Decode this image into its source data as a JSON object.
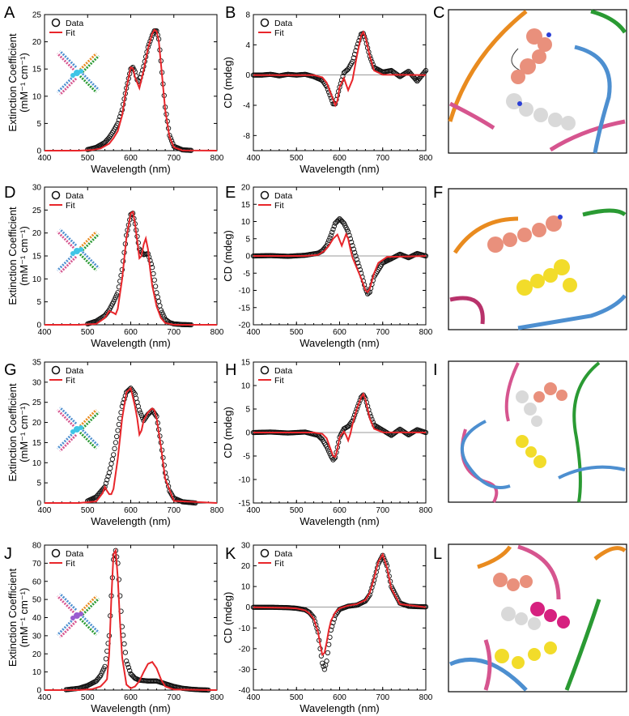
{
  "colors": {
    "fit": "#e8262b",
    "data": "#111111",
    "strand_orange": "#e98b1f",
    "strand_green": "#2a9a33",
    "strand_blue": "#4d8fd0",
    "strand_pink": "#d6558f",
    "dye_salmon": "#e9907c",
    "dye_white": "#d9d9d9",
    "dye_yellow": "#f2dc2a",
    "dye_magenta": "#d6207f",
    "nitrogen": "#2b3fd6"
  },
  "panels": [
    {
      "letter": "A"
    },
    {
      "letter": "B"
    },
    {
      "letter": "C"
    },
    {
      "letter": "D"
    },
    {
      "letter": "E"
    },
    {
      "letter": "F"
    },
    {
      "letter": "G"
    },
    {
      "letter": "H"
    },
    {
      "letter": "I"
    },
    {
      "letter": "J"
    },
    {
      "letter": "K"
    },
    {
      "letter": "L"
    }
  ],
  "legend": {
    "data_label": "Data",
    "fit_label": "Fit"
  },
  "chart_data": [
    {
      "id": "A",
      "type": "line",
      "xlabel": "Wavelength (nm)",
      "ylabel_line1": "Extinction Coefficient",
      "ylabel_line2": "(mM⁻¹ cm⁻¹)",
      "xlim": [
        400,
        800
      ],
      "ylim": [
        0,
        25
      ],
      "xticks": [
        400,
        500,
        600,
        700,
        800
      ],
      "yticks": [
        0,
        5,
        10,
        15,
        20,
        25
      ],
      "series": [
        {
          "name": "Data",
          "x": [
            500,
            520,
            540,
            550,
            560,
            570,
            580,
            590,
            600,
            605,
            610,
            615,
            620,
            630,
            640,
            650,
            655,
            660,
            665,
            670,
            680,
            690,
            700,
            720,
            740
          ],
          "y": [
            0.2,
            0.6,
            1.5,
            2.4,
            3.6,
            5.0,
            7.5,
            11.5,
            15.0,
            15.3,
            14.5,
            13.0,
            12.7,
            15.5,
            19.0,
            21.2,
            22.0,
            22.0,
            20.5,
            16.5,
            8.0,
            2.8,
            0.8,
            0.15,
            0.05
          ]
        },
        {
          "name": "Fit",
          "x": [
            400,
            480,
            510,
            530,
            550,
            560,
            570,
            580,
            590,
            600,
            605,
            610,
            620,
            630,
            640,
            650,
            655,
            660,
            665,
            670,
            680,
            690,
            700,
            720,
            800
          ],
          "y": [
            0,
            0,
            0.1,
            0.4,
            1.3,
            2.3,
            3.6,
            6.5,
            11.5,
            15.3,
            15.1,
            13.5,
            11.5,
            14.8,
            18.8,
            21.5,
            22.2,
            21.9,
            20.2,
            16.0,
            7.5,
            2.5,
            0.6,
            0.05,
            0
          ]
        }
      ]
    },
    {
      "id": "B",
      "type": "line",
      "xlabel": "Wavelength (nm)",
      "ylabel_line1": "CD (mdeg)",
      "xlim": [
        400,
        800
      ],
      "ylim": [
        -10,
        8
      ],
      "xticks": [
        400,
        500,
        600,
        700,
        800
      ],
      "yticks": [
        -8,
        -4,
        0,
        4,
        8
      ],
      "series": [
        {
          "name": "Data",
          "x": [
            400,
            420,
            440,
            460,
            480,
            500,
            520,
            540,
            560,
            570,
            580,
            585,
            590,
            600,
            610,
            620,
            630,
            640,
            650,
            655,
            660,
            670,
            680,
            700,
            720,
            740,
            760,
            780,
            800
          ],
          "y": [
            0,
            0,
            0.1,
            -0.1,
            0.1,
            0,
            0.1,
            -0.2,
            -0.7,
            -1.5,
            -3.0,
            -3.8,
            -3.8,
            -1.6,
            0.3,
            0.8,
            1.8,
            3.7,
            5.4,
            5.5,
            4.7,
            2.5,
            1.0,
            0.4,
            0.6,
            -0.2,
            0.5,
            -0.8,
            0.6
          ]
        },
        {
          "name": "Fit",
          "x": [
            400,
            500,
            540,
            560,
            570,
            580,
            590,
            595,
            600,
            610,
            620,
            630,
            640,
            650,
            655,
            660,
            670,
            680,
            700,
            800
          ],
          "y": [
            0,
            0,
            0,
            -0.3,
            -1.0,
            -2.5,
            -4.0,
            -3.4,
            -1.6,
            -0.4,
            -2.0,
            -0.6,
            2.5,
            5.2,
            5.7,
            5.0,
            2.5,
            0.6,
            0.05,
            0
          ]
        }
      ]
    },
    {
      "id": "D",
      "type": "line",
      "xlabel": "Wavelength (nm)",
      "ylabel_line1": "Extinction Coefficient",
      "ylabel_line2": "(mM⁻¹ cm⁻¹)",
      "xlim": [
        400,
        800
      ],
      "ylim": [
        0,
        30
      ],
      "xticks": [
        400,
        500,
        600,
        700,
        800
      ],
      "yticks": [
        0,
        5,
        10,
        15,
        20,
        25,
        30
      ],
      "series": [
        {
          "name": "Data",
          "x": [
            500,
            520,
            540,
            550,
            560,
            570,
            580,
            590,
            600,
            605,
            610,
            620,
            630,
            640,
            650,
            660,
            670,
            680,
            690,
            700,
            720,
            740
          ],
          "y": [
            0.2,
            0.8,
            2.0,
            3.2,
            5.0,
            7.0,
            12.0,
            19.5,
            24.0,
            24.3,
            22.0,
            16.5,
            15.3,
            15.5,
            12.5,
            7.0,
            3.2,
            1.2,
            0.5,
            0.2,
            0.05,
            0
          ]
        },
        {
          "name": "Fit",
          "x": [
            400,
            480,
            520,
            540,
            550,
            560,
            565,
            570,
            580,
            590,
            600,
            605,
            610,
            620,
            625,
            630,
            635,
            640,
            645,
            650,
            660,
            670,
            680,
            700,
            800
          ],
          "y": [
            0,
            0,
            0.2,
            1.5,
            3.0,
            2.6,
            2.3,
            3.5,
            10.0,
            19.0,
            24.3,
            24.6,
            22.0,
            14.5,
            15.0,
            17.5,
            18.8,
            16.5,
            12.0,
            8.5,
            4.0,
            1.5,
            0.4,
            0,
            0
          ]
        }
      ]
    },
    {
      "id": "E",
      "type": "line",
      "xlabel": "Wavelength (nm)",
      "ylabel_line1": "CD (mdeg)",
      "xlim": [
        400,
        800
      ],
      "ylim": [
        -20,
        20
      ],
      "xticks": [
        400,
        500,
        600,
        700,
        800
      ],
      "yticks": [
        -20,
        -15,
        -10,
        -5,
        0,
        5,
        10,
        15,
        20
      ],
      "series": [
        {
          "name": "Data",
          "x": [
            400,
            440,
            480,
            520,
            550,
            560,
            570,
            580,
            590,
            600,
            610,
            620,
            630,
            640,
            650,
            660,
            665,
            670,
            680,
            700,
            720,
            740,
            760,
            780,
            800
          ],
          "y": [
            0,
            0.1,
            -0.1,
            0.2,
            0.8,
            1.5,
            3.0,
            6.0,
            9.5,
            10.8,
            9.5,
            7.0,
            3.0,
            -1.0,
            -5.0,
            -9.5,
            -11.0,
            -10.5,
            -6.0,
            -2.0,
            -0.8,
            0.5,
            -0.5,
            0.7,
            0
          ]
        },
        {
          "name": "Fit",
          "x": [
            400,
            520,
            550,
            565,
            575,
            585,
            595,
            605,
            615,
            620,
            625,
            630,
            640,
            650,
            660,
            665,
            670,
            680,
            690,
            710,
            800
          ],
          "y": [
            0,
            0,
            0.3,
            1.5,
            3.0,
            5.0,
            6.2,
            3.0,
            6.3,
            5.0,
            2.0,
            -0.5,
            -3.5,
            -6.5,
            -10.0,
            -10.5,
            -9.5,
            -5.0,
            -2.0,
            -0.3,
            0
          ]
        }
      ]
    },
    {
      "id": "G",
      "type": "line",
      "xlabel": "Wavelength (nm)",
      "ylabel_line1": "Extinction Coefficient",
      "ylabel_line2": "(mM⁻¹ cm⁻¹)",
      "xlim": [
        400,
        800
      ],
      "ylim": [
        0,
        35
      ],
      "xticks": [
        400,
        500,
        600,
        700,
        800
      ],
      "yticks": [
        0,
        5,
        10,
        15,
        20,
        25,
        30,
        35
      ],
      "series": [
        {
          "name": "Data",
          "x": [
            500,
            520,
            540,
            550,
            560,
            570,
            580,
            590,
            600,
            610,
            620,
            630,
            640,
            650,
            660,
            670,
            680,
            690,
            700,
            720,
            740,
            750
          ],
          "y": [
            0.5,
            1.5,
            4.0,
            7.5,
            12.0,
            18.0,
            24.0,
            27.5,
            28.5,
            27.0,
            23.0,
            20.5,
            22.0,
            23.0,
            21.5,
            15.0,
            7.5,
            3.0,
            1.2,
            0.3,
            0.1,
            0
          ]
        },
        {
          "name": "Fit",
          "x": [
            400,
            480,
            520,
            535,
            540,
            545,
            550,
            555,
            560,
            570,
            580,
            590,
            600,
            610,
            615,
            620,
            625,
            630,
            640,
            650,
            655,
            660,
            670,
            680,
            700,
            800
          ],
          "y": [
            0,
            0,
            0.4,
            2.5,
            4.0,
            3.0,
            2.2,
            2.2,
            3.5,
            11.0,
            21.0,
            27.5,
            28.5,
            24.0,
            21.0,
            17.0,
            18.0,
            20.5,
            22.5,
            23.5,
            23.0,
            21.0,
            14.0,
            6.0,
            0.5,
            0
          ]
        }
      ]
    },
    {
      "id": "H",
      "type": "line",
      "xlabel": "Wavelength (nm)",
      "ylabel_line1": "CD (mdeg)",
      "xlim": [
        400,
        800
      ],
      "ylim": [
        -15,
        15
      ],
      "xticks": [
        400,
        500,
        600,
        700,
        800
      ],
      "yticks": [
        -15,
        -10,
        -5,
        0,
        5,
        10,
        15
      ],
      "series": [
        {
          "name": "Data",
          "x": [
            400,
            440,
            480,
            520,
            550,
            560,
            570,
            580,
            585,
            590,
            600,
            610,
            620,
            630,
            640,
            650,
            655,
            660,
            670,
            680,
            700,
            720,
            740,
            760,
            780,
            800
          ],
          "y": [
            0,
            0.1,
            -0.1,
            0.1,
            -0.6,
            -1.5,
            -3.0,
            -5.0,
            -5.8,
            -5.3,
            -1.0,
            0.8,
            1.3,
            2.5,
            5.0,
            7.5,
            8.0,
            7.2,
            4.0,
            1.6,
            0.5,
            -0.6,
            0.7,
            -0.5,
            0.6,
            0
          ]
        },
        {
          "name": "Fit",
          "x": [
            400,
            540,
            560,
            570,
            580,
            585,
            590,
            595,
            600,
            610,
            615,
            620,
            625,
            630,
            640,
            650,
            655,
            660,
            670,
            680,
            700,
            800
          ],
          "y": [
            0,
            0,
            -0.3,
            -1.2,
            -3.8,
            -5.0,
            -5.2,
            -3.5,
            -1.0,
            0.2,
            -0.6,
            -1.7,
            -0.3,
            1.8,
            5.0,
            7.5,
            8.2,
            7.0,
            3.0,
            0.8,
            0.05,
            0
          ]
        }
      ]
    },
    {
      "id": "J",
      "type": "line",
      "xlabel": "Wavelength (nm)",
      "ylabel_line1": "Extinction Coefficient",
      "ylabel_line2": "(mM⁻¹ cm⁻¹)",
      "xlim": [
        400,
        800
      ],
      "ylim": [
        0,
        80
      ],
      "xticks": [
        400,
        500,
        600,
        700,
        800
      ],
      "yticks": [
        0,
        10,
        20,
        30,
        40,
        50,
        60,
        70,
        80
      ],
      "series": [
        {
          "name": "Data",
          "x": [
            450,
            480,
            500,
            520,
            530,
            540,
            550,
            555,
            560,
            565,
            570,
            575,
            580,
            590,
            600,
            610,
            620,
            640,
            660,
            680,
            700,
            720,
            740,
            760,
            780
          ],
          "y": [
            0.2,
            1.0,
            2.5,
            5.0,
            8.0,
            13.0,
            30.0,
            52.0,
            72.0,
            77.0,
            70.0,
            52.0,
            35.0,
            16.0,
            9.0,
            6.5,
            5.5,
            5.0,
            5.0,
            3.5,
            2.0,
            1.0,
            0.5,
            0.2,
            0
          ]
        },
        {
          "name": "Fit",
          "x": [
            400,
            480,
            510,
            530,
            540,
            545,
            550,
            555,
            560,
            565,
            570,
            575,
            580,
            590,
            600,
            610,
            620,
            630,
            640,
            650,
            660,
            670,
            680,
            700,
            800
          ],
          "y": [
            0,
            0,
            0.5,
            2.0,
            4.5,
            6.0,
            20.0,
            50.0,
            75.0,
            77.0,
            62.0,
            38.0,
            18.0,
            3.0,
            1.0,
            2.0,
            5.0,
            10.0,
            14.5,
            15.5,
            12.0,
            6.0,
            2.0,
            0.3,
            0
          ]
        }
      ]
    },
    {
      "id": "K",
      "type": "line",
      "xlabel": "Wavelength (nm)",
      "ylabel_line1": "CD (mdeg)",
      "xlim": [
        400,
        800
      ],
      "ylim": [
        -40,
        30
      ],
      "xticks": [
        400,
        500,
        600,
        700,
        800
      ],
      "yticks": [
        -40,
        -30,
        -20,
        -10,
        0,
        10,
        20,
        30
      ],
      "series": [
        {
          "name": "Data",
          "x": [
            400,
            440,
            480,
            500,
            520,
            530,
            540,
            550,
            555,
            560,
            565,
            570,
            575,
            580,
            590,
            600,
            620,
            640,
            660,
            670,
            680,
            690,
            700,
            710,
            720,
            740,
            760,
            780,
            800
          ],
          "y": [
            0,
            0,
            -0.2,
            -0.5,
            -1.2,
            -2.5,
            -5.0,
            -12.0,
            -20.0,
            -27.0,
            -30.0,
            -26.0,
            -18.0,
            -11.0,
            -4.0,
            -1.0,
            0.5,
            1.0,
            3.0,
            6.0,
            13.0,
            21.0,
            25.0,
            20.0,
            10.0,
            2.0,
            0.5,
            0.3,
            0.2
          ]
        },
        {
          "name": "Fit",
          "x": [
            400,
            480,
            500,
            520,
            530,
            540,
            550,
            555,
            560,
            565,
            570,
            575,
            580,
            590,
            600,
            620,
            640,
            660,
            670,
            680,
            690,
            700,
            710,
            720,
            740,
            800
          ],
          "y": [
            0,
            -0.3,
            -0.6,
            -1.5,
            -3.0,
            -5.5,
            -12.0,
            -18.0,
            -23.0,
            -22.0,
            -17.0,
            -11.0,
            -6.5,
            -2.5,
            -0.5,
            0.8,
            1.5,
            3.5,
            7.0,
            14.0,
            22.0,
            25.5,
            19.0,
            9.0,
            1.5,
            0
          ]
        }
      ]
    }
  ]
}
